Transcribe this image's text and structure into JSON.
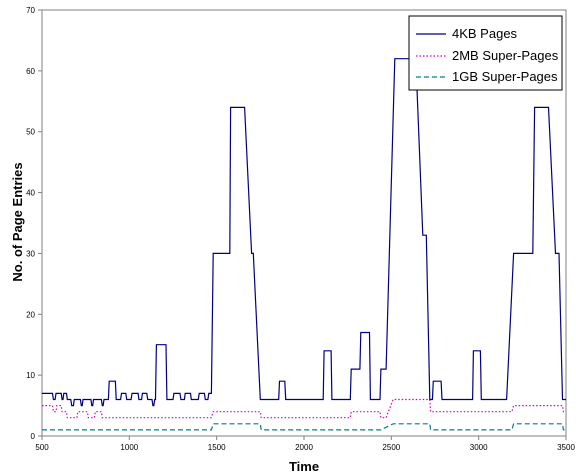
{
  "chart_data": {
    "type": "line",
    "xlabel": "Time",
    "ylabel": "No. of Page Entries",
    "xlim": [
      500,
      3500
    ],
    "ylim": [
      0,
      70
    ],
    "xticks": [
      "500",
      "1000",
      "1500",
      "2000",
      "2500",
      "3000",
      "3500"
    ],
    "yticks": [
      "0",
      "10",
      "20",
      "30",
      "40",
      "50",
      "60",
      "70"
    ],
    "grid": false,
    "legend_position": "top-right",
    "series": [
      {
        "name": "4KB Pages",
        "color": "#000080",
        "style": "solid",
        "points": [
          [
            500,
            7
          ],
          [
            560,
            7
          ],
          [
            565,
            6
          ],
          [
            575,
            6
          ],
          [
            580,
            7
          ],
          [
            610,
            7
          ],
          [
            615,
            6
          ],
          [
            620,
            6
          ],
          [
            625,
            7
          ],
          [
            640,
            7
          ],
          [
            645,
            6
          ],
          [
            665,
            6
          ],
          [
            670,
            5
          ],
          [
            680,
            5
          ],
          [
            685,
            6
          ],
          [
            720,
            6
          ],
          [
            725,
            5
          ],
          [
            730,
            5
          ],
          [
            735,
            6
          ],
          [
            780,
            6
          ],
          [
            785,
            5
          ],
          [
            790,
            5
          ],
          [
            795,
            6
          ],
          [
            840,
            6
          ],
          [
            845,
            5
          ],
          [
            850,
            5
          ],
          [
            855,
            6
          ],
          [
            880,
            6
          ],
          [
            885,
            9
          ],
          [
            920,
            9
          ],
          [
            925,
            6
          ],
          [
            950,
            6
          ],
          [
            955,
            7
          ],
          [
            980,
            7
          ],
          [
            985,
            6
          ],
          [
            1010,
            6
          ],
          [
            1015,
            7
          ],
          [
            1050,
            7
          ],
          [
            1055,
            6
          ],
          [
            1070,
            6
          ],
          [
            1075,
            7
          ],
          [
            1100,
            7
          ],
          [
            1105,
            6
          ],
          [
            1130,
            6
          ],
          [
            1135,
            5
          ],
          [
            1140,
            5
          ],
          [
            1145,
            6
          ],
          [
            1150,
            6
          ],
          [
            1155,
            15
          ],
          [
            1210,
            15
          ],
          [
            1215,
            6
          ],
          [
            1250,
            6
          ],
          [
            1255,
            7
          ],
          [
            1290,
            7
          ],
          [
            1295,
            6
          ],
          [
            1315,
            6
          ],
          [
            1320,
            7
          ],
          [
            1350,
            7
          ],
          [
            1355,
            6
          ],
          [
            1395,
            6
          ],
          [
            1400,
            7
          ],
          [
            1430,
            7
          ],
          [
            1435,
            6
          ],
          [
            1450,
            6
          ],
          [
            1455,
            7
          ],
          [
            1470,
            7
          ],
          [
            1480,
            30
          ],
          [
            1575,
            30
          ],
          [
            1580,
            54
          ],
          [
            1660,
            54
          ],
          [
            1700,
            30
          ],
          [
            1710,
            30
          ],
          [
            1750,
            6
          ],
          [
            1855,
            6
          ],
          [
            1860,
            9
          ],
          [
            1890,
            9
          ],
          [
            1895,
            6
          ],
          [
            2110,
            6
          ],
          [
            2115,
            14
          ],
          [
            2155,
            14
          ],
          [
            2160,
            6
          ],
          [
            2265,
            6
          ],
          [
            2270,
            11
          ],
          [
            2320,
            11
          ],
          [
            2325,
            17
          ],
          [
            2375,
            17
          ],
          [
            2380,
            6
          ],
          [
            2435,
            6
          ],
          [
            2440,
            11
          ],
          [
            2470,
            11
          ],
          [
            2520,
            62
          ],
          [
            2640,
            62
          ],
          [
            2680,
            33
          ],
          [
            2700,
            33
          ],
          [
            2720,
            6
          ],
          [
            2735,
            6
          ],
          [
            2740,
            9
          ],
          [
            2785,
            9
          ],
          [
            2790,
            6
          ],
          [
            2965,
            6
          ],
          [
            2970,
            14
          ],
          [
            3010,
            14
          ],
          [
            3015,
            6
          ],
          [
            3150,
            6
          ],
          [
            3160,
            6
          ],
          [
            3200,
            30
          ],
          [
            3310,
            30
          ],
          [
            3320,
            54
          ],
          [
            3400,
            54
          ],
          [
            3440,
            30
          ],
          [
            3460,
            30
          ],
          [
            3480,
            6
          ],
          [
            3500,
            6
          ]
        ]
      },
      {
        "name": "2MB Super-Pages",
        "color": "#cc00cc",
        "style": "dotted",
        "points": [
          [
            500,
            5
          ],
          [
            560,
            5
          ],
          [
            565,
            4
          ],
          [
            580,
            4
          ],
          [
            585,
            5
          ],
          [
            610,
            5
          ],
          [
            615,
            4
          ],
          [
            640,
            4
          ],
          [
            645,
            3
          ],
          [
            700,
            3
          ],
          [
            705,
            4
          ],
          [
            760,
            4
          ],
          [
            765,
            3
          ],
          [
            800,
            3
          ],
          [
            805,
            4
          ],
          [
            840,
            4
          ],
          [
            845,
            3
          ],
          [
            880,
            3
          ],
          [
            885,
            3
          ],
          [
            1470,
            3
          ],
          [
            1480,
            4
          ],
          [
            1750,
            4
          ],
          [
            1755,
            3
          ],
          [
            2265,
            3
          ],
          [
            2270,
            4
          ],
          [
            2435,
            4
          ],
          [
            2440,
            3
          ],
          [
            2470,
            3
          ],
          [
            2510,
            6
          ],
          [
            2720,
            6
          ],
          [
            2725,
            4
          ],
          [
            3190,
            4
          ],
          [
            3200,
            5
          ],
          [
            3480,
            5
          ],
          [
            3485,
            4
          ],
          [
            3500,
            4
          ]
        ]
      },
      {
        "name": "1GB Super-Pages",
        "color": "#008080",
        "style": "dashed",
        "points": [
          [
            500,
            1
          ],
          [
            1470,
            1
          ],
          [
            1480,
            2
          ],
          [
            1750,
            2
          ],
          [
            1755,
            1
          ],
          [
            2440,
            1
          ],
          [
            2510,
            2
          ],
          [
            2720,
            2
          ],
          [
            2725,
            1
          ],
          [
            3190,
            1
          ],
          [
            3200,
            2
          ],
          [
            3480,
            2
          ],
          [
            3485,
            1
          ],
          [
            3500,
            1
          ]
        ]
      }
    ]
  }
}
